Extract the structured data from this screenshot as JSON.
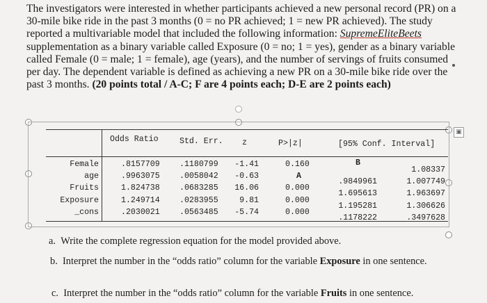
{
  "intro": {
    "p1": "The investigators were interested in whether participants achieved a new personal record (PR) on a 30-mile bike ride in the past 3 months (0 = no PR achieved; 1 = new PR achieved). The study reported a multivariable model that included the following information: ",
    "supplement": "SupremeEliteBeets",
    "p2": " supplementation as a binary variable called Exposure (0 = no; 1 = yes), gender as a binary variable called Female (0 = male; 1 = female), age (years), and the number of servings of fruits consumed per day. The dependent variable is defined as achieving a new PR on a 30-mile bike ride over the past 3 months. ",
    "points": "(20 points total / A-C; F are 4 points each; D-E are 2 points each)"
  },
  "table": {
    "headers": {
      "odds": "Odds Ratio",
      "se": "Std. Err.",
      "z": "z",
      "p": "P>|z|",
      "ci": "[95% Conf. Interval]"
    },
    "rows": [
      {
        "name": "Female",
        "odds": ".8157709",
        "se": ".1180799",
        "z": "-1.41",
        "p": "0.160",
        "lo": "B",
        "hi": "1.08337"
      },
      {
        "name": "age",
        "odds": ".9963075",
        "se": ".0058042",
        "z": "-0.63",
        "p": "A",
        "lo": ".9849961",
        "hi": "1.007749"
      },
      {
        "name": "Fruits",
        "odds": "1.824738",
        "se": ".0683285",
        "z": "16.06",
        "p": "0.000",
        "lo": "1.695613",
        "hi": "1.963697"
      },
      {
        "name": "Exposure",
        "odds": "1.249714",
        "se": ".0283955",
        "z": "9.81",
        "p": "0.000",
        "lo": "1.195281",
        "hi": "1.306626"
      },
      {
        "name": "_cons",
        "odds": ".2030021",
        "se": ".0563485",
        "z": "-5.74",
        "p": "0.000",
        "lo": ".1178222",
        "hi": ".3497628"
      }
    ]
  },
  "questions": {
    "a_letter": "a.",
    "a_text": "Write the complete regression equation for the model provided above.",
    "b_letter": "b.",
    "b_text1": "Interpret the number in the “odds ratio” column for the variable ",
    "b_bold": "Exposure",
    "b_text2": " in one sentence.",
    "c_letter": "c.",
    "c_text1": "Interpret the number in the “odds ratio” column for the variable ",
    "c_bold": "Fruits",
    "c_text2": " in one sentence."
  },
  "icons": {
    "side_icon": "image-icon",
    "side_glyph": "▣"
  }
}
